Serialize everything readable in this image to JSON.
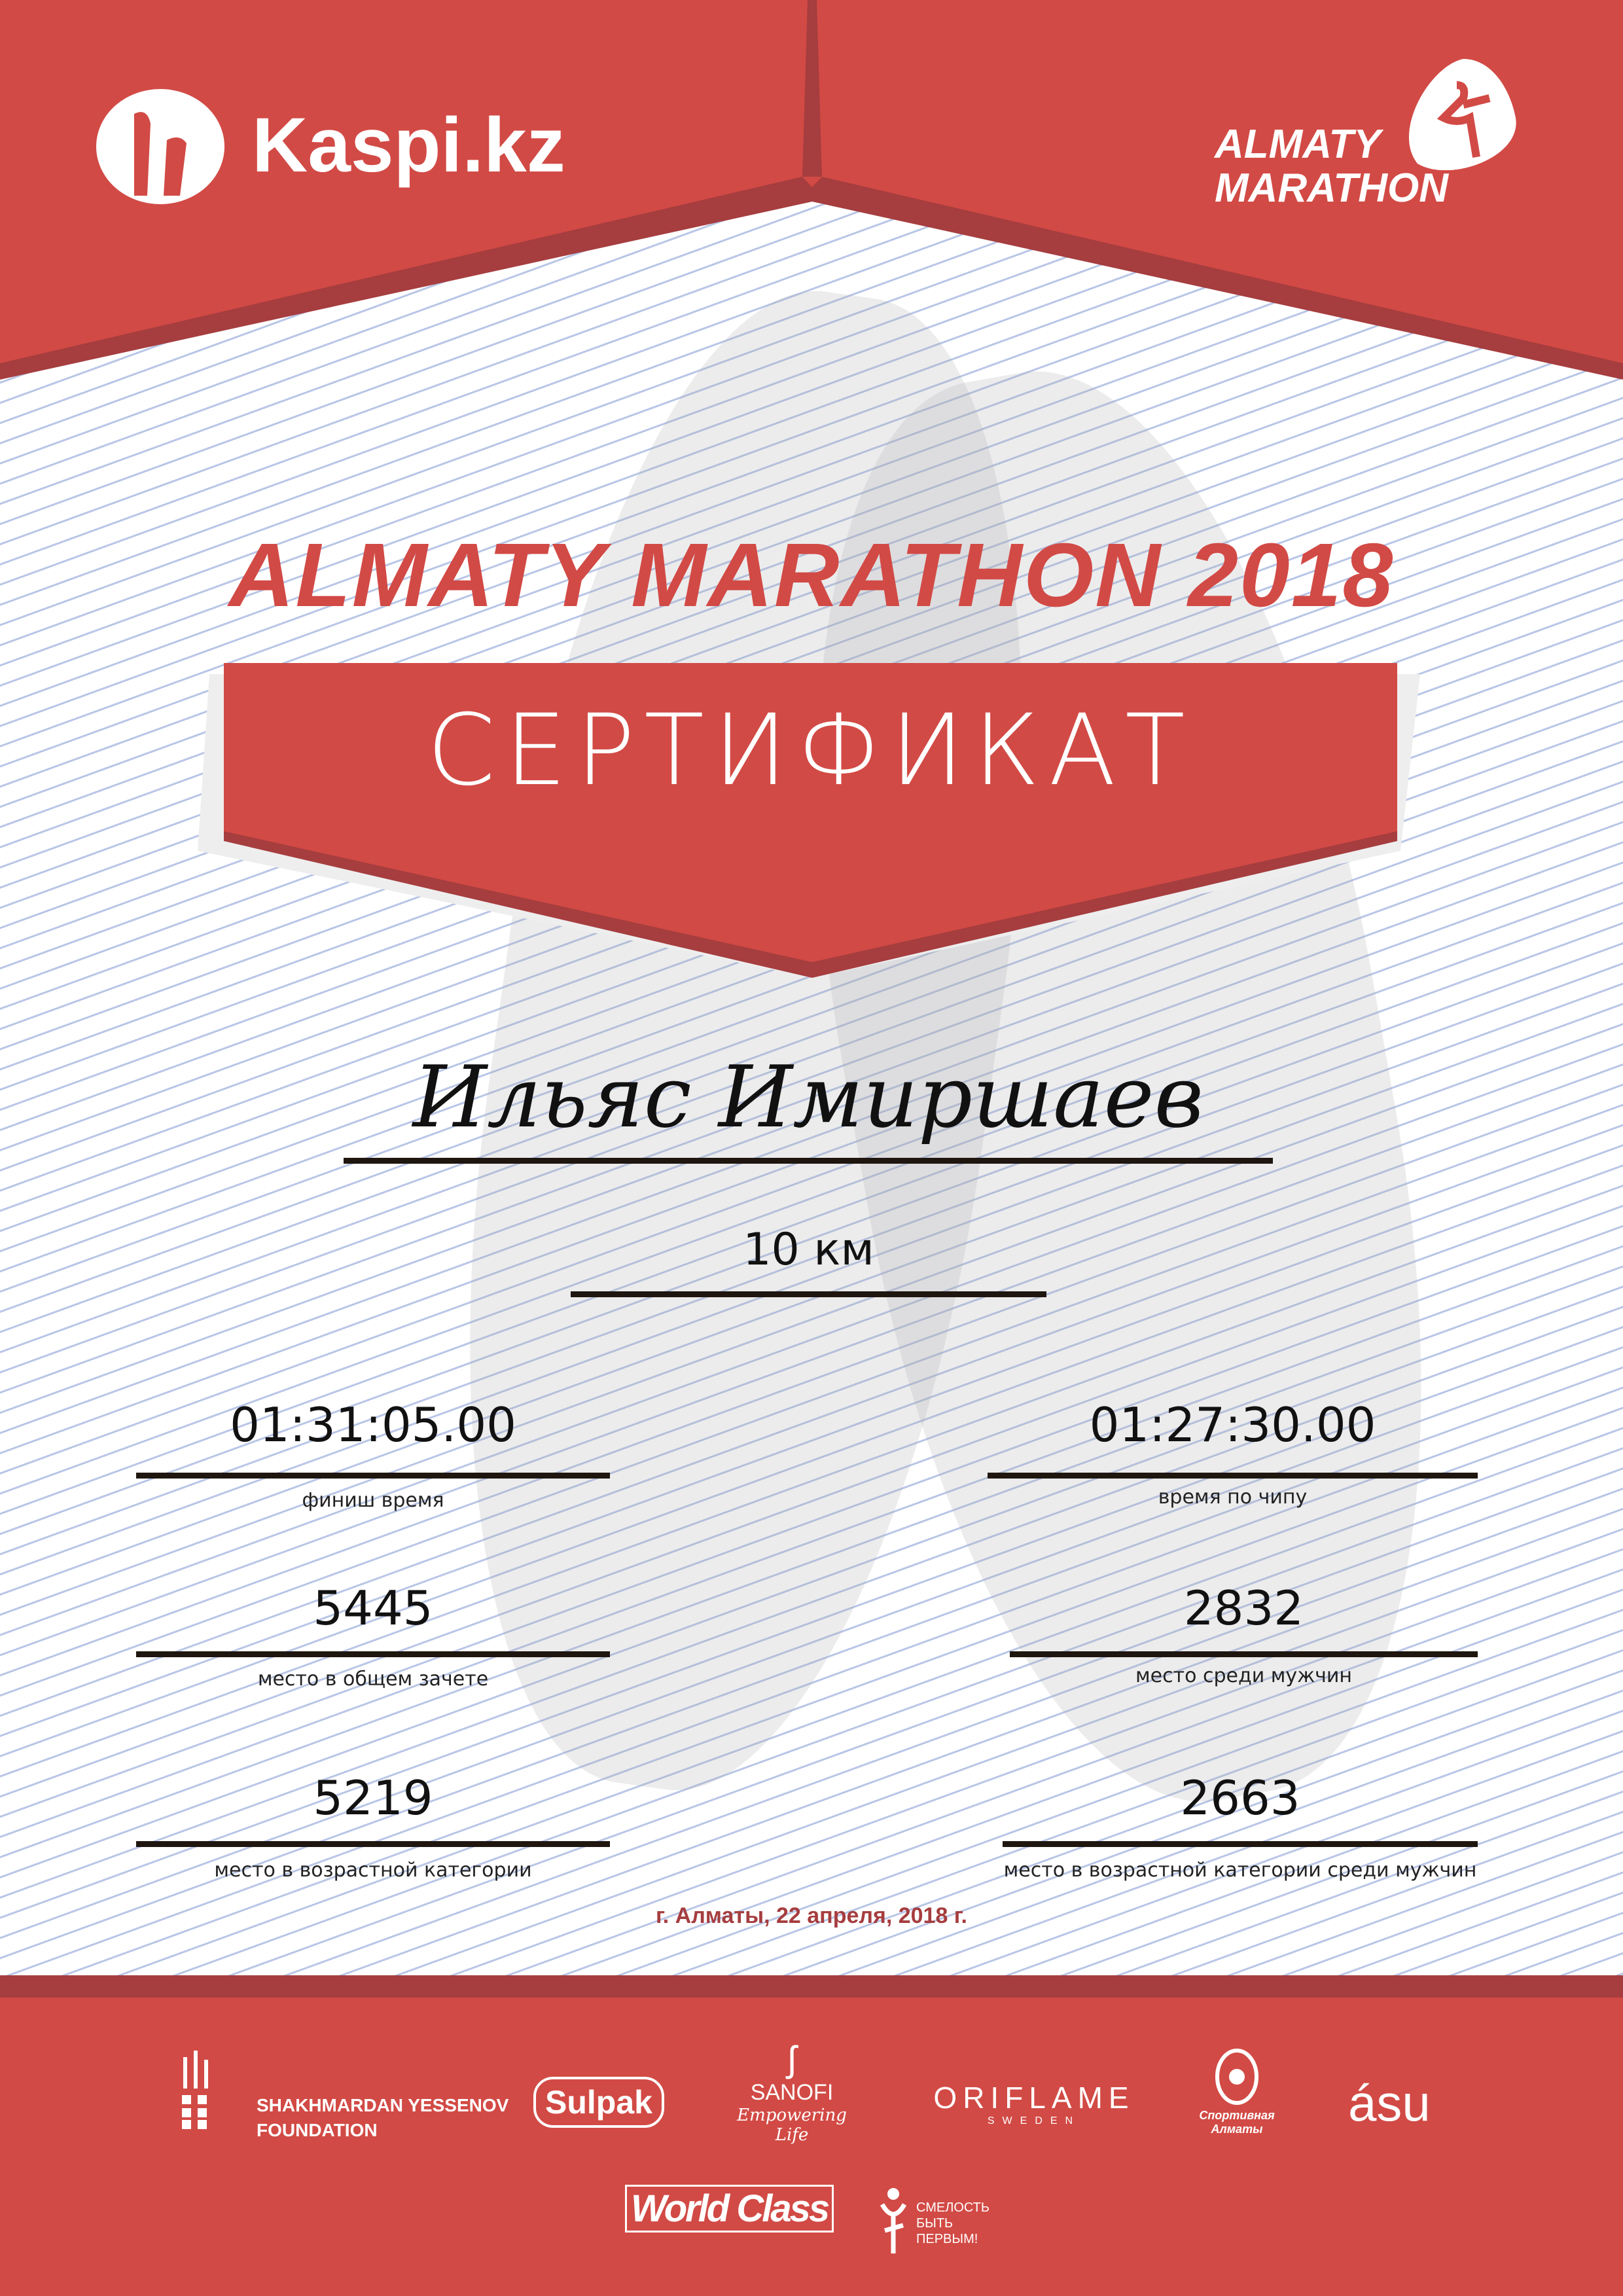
{
  "colors": {
    "brand_red": "#d24a45",
    "dark_red": "#a63d3f",
    "line_blue": "#b9c6e6"
  },
  "header": {
    "left_logo": "Kaspi.kz",
    "right_logo_line1": "ALMATY",
    "right_logo_line2": "MARATHON"
  },
  "title": "ALMATY MARATHON 2018",
  "ribbon": "СЕРТИФИКАТ",
  "participant": {
    "name": "Ильяс Имиршаев",
    "distance": "10 км"
  },
  "results": {
    "finish_time": {
      "value": "01:31:05.00",
      "label": "финиш время"
    },
    "chip_time": {
      "value": "01:27:30.00",
      "label": "время по чипу"
    },
    "overall_place": {
      "value": "5445",
      "label": "место в общем зачете"
    },
    "men_place": {
      "value": "2832",
      "label": "место среди мужчин"
    },
    "age_place": {
      "value": "5219",
      "label": "место в возрастной категории"
    },
    "age_men_place": {
      "value": "2663",
      "label": "место в возрастной категории среди мужчин"
    }
  },
  "date": "г. Алматы, 22 апреля, 2018 г.",
  "sponsors": {
    "yessenov_line1": "SHAKHMARDAN YESSENOV",
    "yessenov_line2": "FOUNDATION",
    "sulpak": "Sulpak",
    "sanofi": "SANOFI",
    "sanofi_tagline": "Empowering Life",
    "oriflame": "ORIFLAME",
    "oriflame_sub": "SWEDEN",
    "sport_almaty": "Спортивная Алматы",
    "asu": "ásu",
    "worldclass": "World Class",
    "fund_line1": "СМЕЛОСТЬ",
    "fund_line2": "БЫТЬ",
    "fund_line3": "ПЕРВЫМ!"
  }
}
